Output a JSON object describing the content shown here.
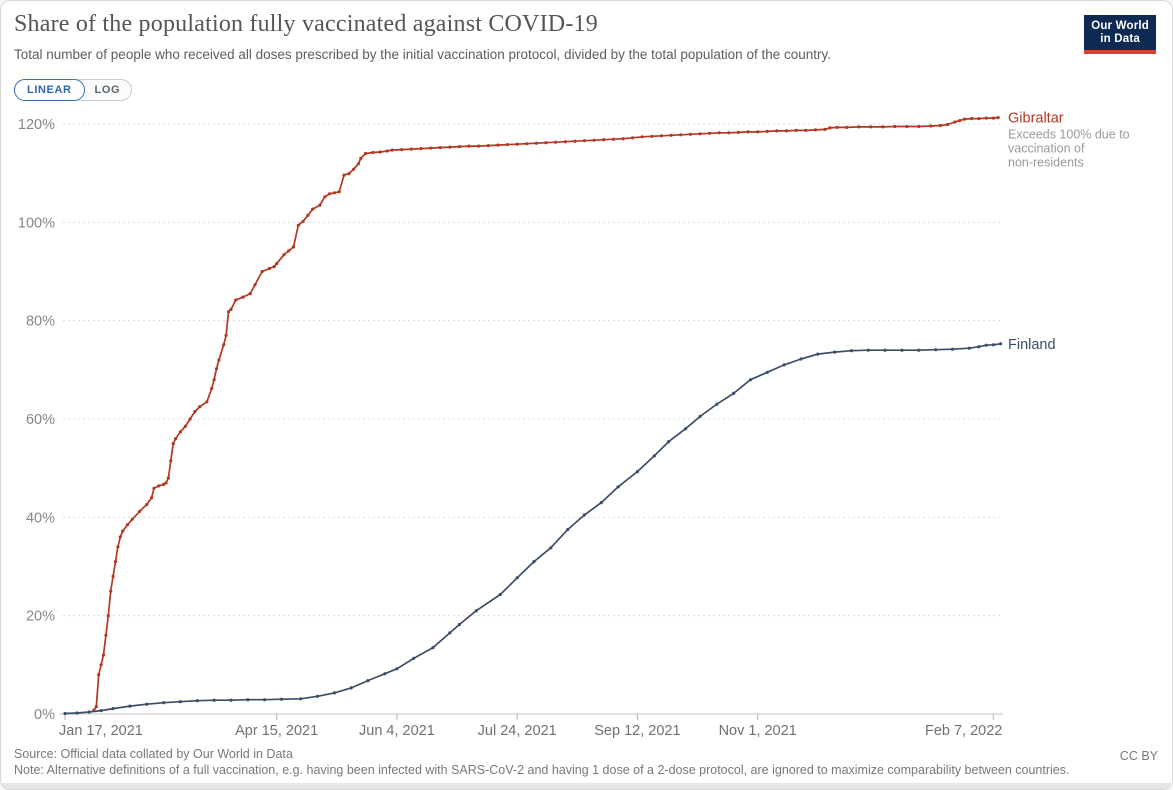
{
  "header": {
    "title": "Share of the population fully vaccinated against COVID-19",
    "subtitle": "Total number of people who received all doses prescribed by the initial vaccination protocol, divided by the total population of the country.",
    "logo": {
      "line1": "Our World",
      "line2": "in Data"
    }
  },
  "toggles": {
    "linear": "LINEAR",
    "log": "LOG"
  },
  "footer": {
    "source": "Source: Official data collated by Our World in Data",
    "note": "Note: Alternative definitions of a full vaccination, e.g. having been infected with SARS-CoV-2 and having 1 dose of a 2-dose protocol, are ignored to maximize comparability between countries.",
    "license": "CC BY"
  },
  "colors": {
    "gibraltar": "#B23822",
    "finland": "#3C4E66",
    "gridline": "#dcdcdc",
    "axis_line": "#c6c6c6",
    "tick_mark": "#b5b5b5",
    "y_label": "#878787",
    "x_label": "#707070",
    "annotation": "#9a9a9a",
    "logo_bg": "#0f2a52",
    "logo_bar": "#dc3e32",
    "toggle_active": "#2d66b1"
  },
  "chart_data": {
    "type": "line",
    "title": "Share of the population fully vaccinated against COVID-19",
    "x_unit": "days since Jan 17, 2021",
    "grid": true,
    "legend_position": "end-of-line",
    "x_axis": {
      "ticks": [
        {
          "day": 0,
          "label": "Jan 17, 2021",
          "align": "start"
        },
        {
          "day": 88,
          "label": "Apr 15, 2021",
          "align": "middle"
        },
        {
          "day": 138,
          "label": "Jun 4, 2021",
          "align": "middle"
        },
        {
          "day": 188,
          "label": "Jul 24, 2021",
          "align": "middle"
        },
        {
          "day": 238,
          "label": "Sep 12, 2021",
          "align": "middle"
        },
        {
          "day": 288,
          "label": "Nov 1, 2021",
          "align": "middle"
        },
        {
          "day": 386,
          "label": "Feb 7, 2022",
          "align": "end"
        }
      ],
      "domain_days": [
        0,
        390
      ]
    },
    "y_axis": {
      "min": 0,
      "max": 120,
      "format": "percent",
      "ticks": [
        {
          "value": 0,
          "label": "0%"
        },
        {
          "value": 20,
          "label": "20%"
        },
        {
          "value": 40,
          "label": "40%"
        },
        {
          "value": 60,
          "label": "60%"
        },
        {
          "value": 80,
          "label": "80%"
        },
        {
          "value": 100,
          "label": "100%"
        },
        {
          "value": 120,
          "label": "120%"
        }
      ]
    },
    "series": [
      {
        "name": "Gibraltar",
        "color": "#B23822",
        "annotation_lines": [
          "Exceeds 100% due to",
          "vaccination of",
          "non-residents"
        ],
        "points": [
          [
            12,
            0.8
          ],
          [
            13,
            1.5
          ],
          [
            14,
            8
          ],
          [
            15,
            10
          ],
          [
            16,
            12
          ],
          [
            17,
            16
          ],
          [
            18,
            20
          ],
          [
            19,
            25
          ],
          [
            20,
            28
          ],
          [
            21,
            31
          ],
          [
            22,
            34
          ],
          [
            23,
            36
          ],
          [
            24,
            37.2
          ],
          [
            26,
            38.5
          ],
          [
            28,
            39.6
          ],
          [
            31,
            41.2
          ],
          [
            34,
            42.6
          ],
          [
            36,
            44
          ],
          [
            37,
            45.9
          ],
          [
            39,
            46.4
          ],
          [
            41,
            46.7
          ],
          [
            42,
            47
          ],
          [
            43,
            48
          ],
          [
            44,
            51.5
          ],
          [
            45,
            55
          ],
          [
            46,
            56
          ],
          [
            48,
            57.4
          ],
          [
            50,
            58.5
          ],
          [
            52,
            60
          ],
          [
            54,
            61.5
          ],
          [
            56,
            62.5
          ],
          [
            59,
            63.5
          ],
          [
            61,
            66.2
          ],
          [
            62,
            68
          ],
          [
            63,
            70.2
          ],
          [
            64,
            72
          ],
          [
            66,
            75.1
          ],
          [
            67,
            77
          ],
          [
            68,
            81.8
          ],
          [
            69,
            82.3
          ],
          [
            71,
            84.2
          ],
          [
            74,
            84.8
          ],
          [
            77,
            85.5
          ],
          [
            79,
            87.3
          ],
          [
            82,
            90
          ],
          [
            85,
            90.6
          ],
          [
            87,
            91
          ],
          [
            88,
            91.6
          ],
          [
            91,
            93.4
          ],
          [
            93,
            94.2
          ],
          [
            95,
            95
          ],
          [
            97,
            99.4
          ],
          [
            99,
            100.2
          ],
          [
            101,
            101.4
          ],
          [
            103,
            102.7
          ],
          [
            106,
            103.5
          ],
          [
            108,
            105.2
          ],
          [
            110,
            105.8
          ],
          [
            112,
            106
          ],
          [
            114,
            106.2
          ],
          [
            116,
            109.6
          ],
          [
            118,
            109.9
          ],
          [
            120,
            110.8
          ],
          [
            122,
            111.9
          ],
          [
            123,
            113
          ],
          [
            125,
            114
          ],
          [
            128,
            114.2
          ],
          [
            131,
            114.3
          ],
          [
            134,
            114.5
          ],
          [
            136,
            114.7
          ],
          [
            140,
            114.8
          ],
          [
            144,
            114.9
          ],
          [
            148,
            115
          ],
          [
            152,
            115.1
          ],
          [
            156,
            115.2
          ],
          [
            160,
            115.3
          ],
          [
            164,
            115.4
          ],
          [
            168,
            115.5
          ],
          [
            172,
            115.5
          ],
          [
            176,
            115.6
          ],
          [
            180,
            115.7
          ],
          [
            184,
            115.8
          ],
          [
            188,
            115.9
          ],
          [
            192,
            116
          ],
          [
            196,
            116.1
          ],
          [
            200,
            116.2
          ],
          [
            204,
            116.3
          ],
          [
            208,
            116.4
          ],
          [
            212,
            116.5
          ],
          [
            216,
            116.6
          ],
          [
            220,
            116.7
          ],
          [
            224,
            116.8
          ],
          [
            228,
            116.9
          ],
          [
            232,
            117
          ],
          [
            236,
            117.2
          ],
          [
            240,
            117.4
          ],
          [
            244,
            117.5
          ],
          [
            248,
            117.6
          ],
          [
            252,
            117.7
          ],
          [
            256,
            117.8
          ],
          [
            260,
            117.9
          ],
          [
            264,
            118
          ],
          [
            268,
            118.1
          ],
          [
            272,
            118.2
          ],
          [
            276,
            118.2
          ],
          [
            280,
            118.3
          ],
          [
            284,
            118.4
          ],
          [
            288,
            118.4
          ],
          [
            292,
            118.5
          ],
          [
            296,
            118.6
          ],
          [
            300,
            118.6
          ],
          [
            304,
            118.7
          ],
          [
            308,
            118.7
          ],
          [
            312,
            118.8
          ],
          [
            316,
            118.9
          ],
          [
            318,
            119.2
          ],
          [
            321,
            119.3
          ],
          [
            325,
            119.3
          ],
          [
            330,
            119.4
          ],
          [
            335,
            119.4
          ],
          [
            340,
            119.4
          ],
          [
            345,
            119.5
          ],
          [
            350,
            119.5
          ],
          [
            355,
            119.5
          ],
          [
            360,
            119.6
          ],
          [
            364,
            119.7
          ],
          [
            367,
            119.9
          ],
          [
            370,
            120.4
          ],
          [
            372,
            120.7
          ],
          [
            374,
            121
          ],
          [
            377,
            121.1
          ],
          [
            380,
            121.1
          ],
          [
            383,
            121.2
          ],
          [
            386,
            121.2
          ],
          [
            388,
            121.3
          ]
        ]
      },
      {
        "name": "Finland",
        "color": "#3C4E66",
        "annotation_lines": [],
        "points": [
          [
            0,
            0.1
          ],
          [
            5,
            0.2
          ],
          [
            10,
            0.4
          ],
          [
            15,
            0.7
          ],
          [
            20,
            1.1
          ],
          [
            27,
            1.6
          ],
          [
            34,
            2
          ],
          [
            41,
            2.3
          ],
          [
            48,
            2.5
          ],
          [
            55,
            2.7
          ],
          [
            62,
            2.8
          ],
          [
            69,
            2.8
          ],
          [
            76,
            2.9
          ],
          [
            83,
            2.9
          ],
          [
            90,
            3
          ],
          [
            98,
            3.1
          ],
          [
            105,
            3.6
          ],
          [
            112,
            4.3
          ],
          [
            119,
            5.3
          ],
          [
            126,
            6.8
          ],
          [
            133,
            8.2
          ],
          [
            138,
            9.2
          ],
          [
            145,
            11.3
          ],
          [
            153,
            13.5
          ],
          [
            160,
            16.5
          ],
          [
            164,
            18.2
          ],
          [
            171,
            21
          ],
          [
            181,
            24.3
          ],
          [
            188,
            27.7
          ],
          [
            195,
            31
          ],
          [
            202,
            33.8
          ],
          [
            209,
            37.5
          ],
          [
            216,
            40.5
          ],
          [
            223,
            43
          ],
          [
            230,
            46.2
          ],
          [
            238,
            49.3
          ],
          [
            245,
            52.5
          ],
          [
            251,
            55.4
          ],
          [
            258,
            58
          ],
          [
            264,
            60.5
          ],
          [
            271,
            63
          ],
          [
            278,
            65.2
          ],
          [
            285,
            68
          ],
          [
            292,
            69.5
          ],
          [
            299,
            71
          ],
          [
            306,
            72.2
          ],
          [
            313,
            73.2
          ],
          [
            320,
            73.6
          ],
          [
            327,
            73.9
          ],
          [
            334,
            74
          ],
          [
            341,
            74
          ],
          [
            348,
            74
          ],
          [
            355,
            74
          ],
          [
            362,
            74.1
          ],
          [
            369,
            74.2
          ],
          [
            376,
            74.4
          ],
          [
            380,
            74.7
          ],
          [
            383,
            75
          ],
          [
            386,
            75.1
          ],
          [
            389,
            75.3
          ]
        ]
      }
    ]
  }
}
